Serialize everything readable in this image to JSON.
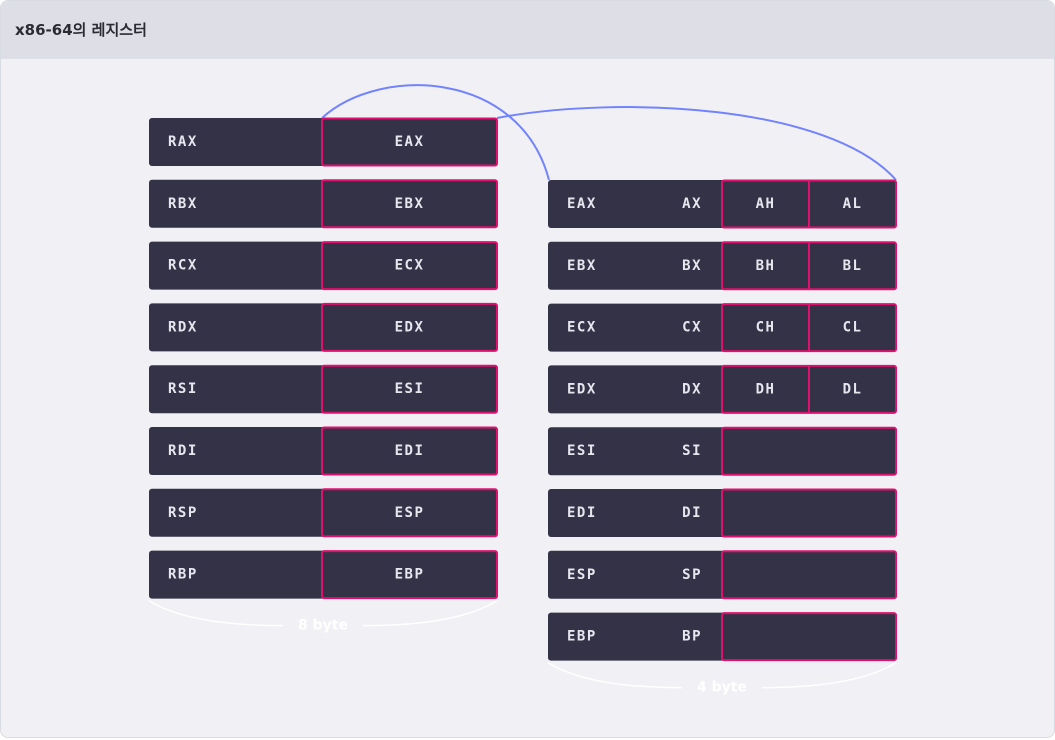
{
  "header": {
    "title": "x86-64의 레지스터"
  },
  "left_table": {
    "rows": [
      {
        "r64": "RAX",
        "r32": "EAX"
      },
      {
        "r64": "RBX",
        "r32": "EBX"
      },
      {
        "r64": "RCX",
        "r32": "ECX"
      },
      {
        "r64": "RDX",
        "r32": "EDX"
      },
      {
        "r64": "RSI",
        "r32": "ESI"
      },
      {
        "r64": "RDI",
        "r32": "EDI"
      },
      {
        "r64": "RSP",
        "r32": "ESP"
      },
      {
        "r64": "RBP",
        "r32": "EBP"
      }
    ],
    "size_label": "8 byte"
  },
  "right_table": {
    "rows": [
      {
        "r32": "EAX",
        "r16": "AX",
        "hi": "AH",
        "lo": "AL"
      },
      {
        "r32": "EBX",
        "r16": "BX",
        "hi": "BH",
        "lo": "BL"
      },
      {
        "r32": "ECX",
        "r16": "CX",
        "hi": "CH",
        "lo": "CL"
      },
      {
        "r32": "EDX",
        "r16": "DX",
        "hi": "DH",
        "lo": "DL"
      },
      {
        "r32": "ESI",
        "r16": "SI",
        "hi": "",
        "lo": ""
      },
      {
        "r32": "EDI",
        "r16": "DI",
        "hi": "",
        "lo": ""
      },
      {
        "r32": "ESP",
        "r16": "SP",
        "hi": "",
        "lo": ""
      },
      {
        "r32": "EBP",
        "r16": "BP",
        "hi": "",
        "lo": ""
      }
    ],
    "size_label": "4 byte"
  },
  "colors": {
    "cell_fill": "#343247",
    "highlight_border": "#e0106e",
    "connector": "#7283ff",
    "brace": "#ffffff"
  }
}
